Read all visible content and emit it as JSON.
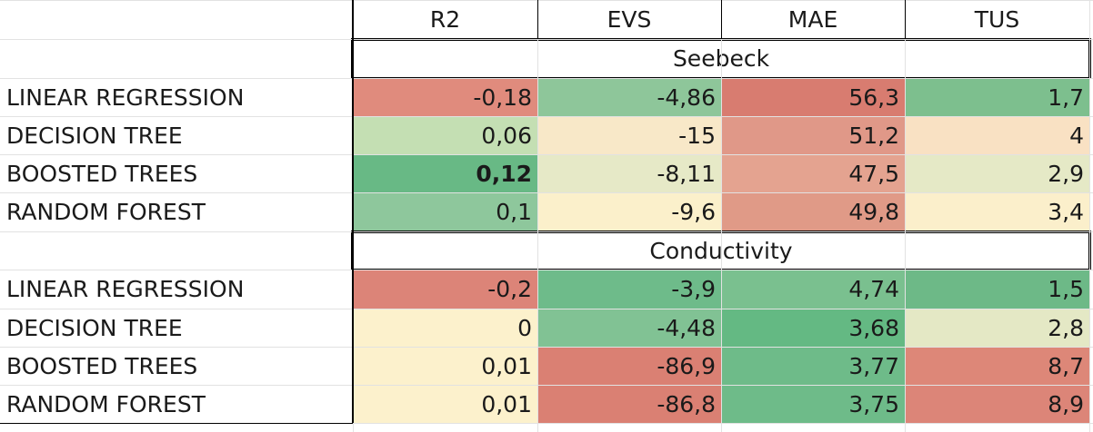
{
  "columns": [
    "R2",
    "EVS",
    "MAE",
    "TUS"
  ],
  "colors": {
    "strong_green": "#63b983",
    "green": "#79c191",
    "mid_green": "#8cc79b",
    "light_green": "#c4dfb3",
    "pale_green": "#e4e8c5",
    "cream": "#fdf1cc",
    "light_yellow": "#fbf0cb",
    "peach": "#f9e3c3",
    "light_red": "#e4a18e",
    "mid_red": "#e0917f",
    "red": "#dc8478",
    "strong_red": "#d87c70"
  },
  "sections": [
    {
      "title": "Seebeck",
      "rows": [
        {
          "model": "LINEAR REGRESSION",
          "cells": [
            {
              "value": "-0,18",
              "bg": "#e08b7d"
            },
            {
              "value": "-4,86",
              "bg": "#8ec69a"
            },
            {
              "value": "56,3",
              "bg": "#d87c70"
            },
            {
              "value": "1,7",
              "bg": "#7dbf8e"
            }
          ]
        },
        {
          "model": "DECISION TREE",
          "cells": [
            {
              "value": "0,06",
              "bg": "#c4dfb3"
            },
            {
              "value": "-15",
              "bg": "#f8e8c8"
            },
            {
              "value": "51,2",
              "bg": "#e09888"
            },
            {
              "value": "4",
              "bg": "#f9e1c3"
            }
          ]
        },
        {
          "model": "BOOSTED TREES",
          "cells": [
            {
              "value": "0,12",
              "bg": "#68b985",
              "bold": true
            },
            {
              "value": "-8,11",
              "bg": "#e6e9c7"
            },
            {
              "value": "47,5",
              "bg": "#e4a390"
            },
            {
              "value": "2,9",
              "bg": "#e5e9c6"
            }
          ]
        },
        {
          "model": "RANDOM FOREST",
          "cells": [
            {
              "value": "0,1",
              "bg": "#8ec79c"
            },
            {
              "value": "-9,6",
              "bg": "#fbf0cb"
            },
            {
              "value": "49,8",
              "bg": "#e09a87"
            },
            {
              "value": "3,4",
              "bg": "#fbefcb"
            }
          ]
        }
      ]
    },
    {
      "title": "Conductivity",
      "rows": [
        {
          "model": "LINEAR REGRESSION",
          "cells": [
            {
              "value": "-0,2",
              "bg": "#dc8478"
            },
            {
              "value": "-3,9",
              "bg": "#6ebb8a"
            },
            {
              "value": "4,74",
              "bg": "#7ac08f"
            },
            {
              "value": "1,5",
              "bg": "#6db987"
            }
          ]
        },
        {
          "model": "DECISION TREE",
          "cells": [
            {
              "value": "0",
              "bg": "#fcf1cc"
            },
            {
              "value": "-4,48",
              "bg": "#81c294"
            },
            {
              "value": "3,68",
              "bg": "#64b983"
            },
            {
              "value": "2,8",
              "bg": "#e4e8c5"
            }
          ]
        },
        {
          "model": "BOOSTED TREES",
          "cells": [
            {
              "value": "0,01",
              "bg": "#fcf1cc"
            },
            {
              "value": "-86,9",
              "bg": "#da8073"
            },
            {
              "value": "3,77",
              "bg": "#6ebb89"
            },
            {
              "value": "8,7",
              "bg": "#dd8778"
            }
          ]
        },
        {
          "model": "RANDOM FOREST",
          "cells": [
            {
              "value": "0,01",
              "bg": "#fcf1cc"
            },
            {
              "value": "-86,8",
              "bg": "#da8073"
            },
            {
              "value": "3,75",
              "bg": "#6ebb89"
            },
            {
              "value": "8,9",
              "bg": "#dc8578"
            }
          ]
        }
      ]
    }
  ]
}
